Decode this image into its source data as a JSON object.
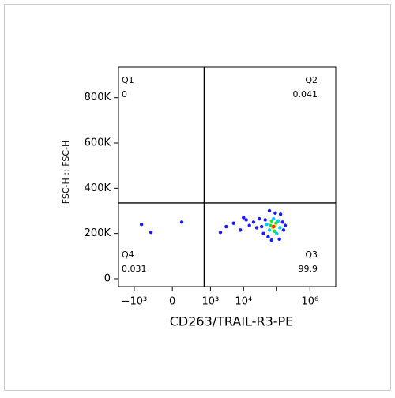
{
  "chart_data": {
    "type": "scatter",
    "x_label": "CD263/TRAIL-R3-PE",
    "y_label": "FSC-H :: FSC-H",
    "xscale": "biexponential",
    "xlim": [
      -3000,
      6000000
    ],
    "ylim": [
      -35000,
      935000
    ],
    "xticks": [
      {
        "value": -1000,
        "label": "−10³"
      },
      0,
      {
        "value": 1000,
        "label": "10³"
      },
      {
        "value": 10000,
        "label": "10⁴"
      },
      {
        "value": 100000,
        "label": null
      },
      {
        "value": 1000000,
        "label": "10⁶"
      }
    ],
    "yticks": [
      0,
      {
        "value": 200000,
        "label": "200K"
      },
      {
        "value": 400000,
        "label": "400K"
      },
      {
        "value": 600000,
        "label": "600K"
      },
      {
        "value": 800000,
        "label": "800K"
      }
    ],
    "gates": {
      "x": 640,
      "y": 335000
    },
    "quadrants": [
      {
        "name": "Q1",
        "value": 0
      },
      {
        "name": "Q2",
        "value": 0.041
      },
      {
        "name": "Q3",
        "value": 99.9
      },
      {
        "name": "Q4",
        "value": 0.031
      }
    ],
    "x": [
      40000,
      45000,
      150000,
      160000,
      55000,
      120000,
      90000,
      60000,
      130000,
      180000,
      35000,
      70000,
      3000,
      5000,
      8000,
      12000,
      15000,
      20000,
      25000,
      2000,
      10000,
      30000,
      -600,
      -300,
      100,
      50000,
      110000,
      100000,
      60000,
      80000,
      125000,
      65000,
      95000,
      85000,
      70000,
      75000,
      90000,
      80000
    ],
    "y": [
      200000,
      260000,
      250000,
      215000,
      185000,
      175000,
      290000,
      300000,
      285000,
      235000,
      230000,
      170000,
      230000,
      245000,
      215000,
      260000,
      235000,
      250000,
      225000,
      205000,
      270000,
      265000,
      240000,
      205000,
      250000,
      240000,
      255000,
      200000,
      215000,
      265000,
      225000,
      235000,
      245000,
      210000,
      255000,
      225000,
      232000,
      230000
    ],
    "point_colors": [
      "#1a1aff",
      "#1a1aff",
      "#1a1aff",
      "#1a1aff",
      "#1a1aff",
      "#1a1aff",
      "#1a1aff",
      "#1a1aff",
      "#1a1aff",
      "#1a1aff",
      "#1a1aff",
      "#1a1aff",
      "#1a1aff",
      "#1a1aff",
      "#1a1aff",
      "#1a1aff",
      "#1a1aff",
      "#1a1aff",
      "#1a1aff",
      "#1a1aff",
      "#1a1aff",
      "#1a1aff",
      "#1a1aff",
      "#1a1aff",
      "#1a1aff",
      "#00c8ff",
      "#00c8ff",
      "#00c8ff",
      "#00c8ff",
      "#00c8ff",
      "#00c8ff",
      "#20e040",
      "#20e040",
      "#20e040",
      "#20e040",
      "#f0e000",
      "#f0e000",
      "#ff2000"
    ]
  }
}
